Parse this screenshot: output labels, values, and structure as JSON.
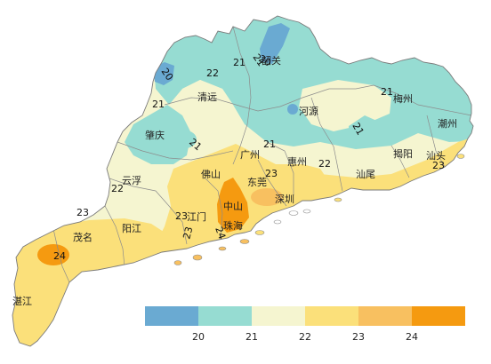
{
  "map": {
    "cities": [
      {
        "key": "shaoguan",
        "label": "韶关"
      },
      {
        "key": "qingyuan",
        "label": "清远"
      },
      {
        "key": "heyuan",
        "label": "河源"
      },
      {
        "key": "meizhou",
        "label": "梅州"
      },
      {
        "key": "chaozhou",
        "label": "潮州"
      },
      {
        "key": "zhaoqing",
        "label": "肇庆"
      },
      {
        "key": "guangzhou",
        "label": "广州"
      },
      {
        "key": "huizhou",
        "label": "惠州"
      },
      {
        "key": "jieyang",
        "label": "揭阳"
      },
      {
        "key": "shantou",
        "label": "汕头"
      },
      {
        "key": "foshan",
        "label": "佛山"
      },
      {
        "key": "dongguan",
        "label": "东莞"
      },
      {
        "key": "shanwei",
        "label": "汕尾"
      },
      {
        "key": "yunfu",
        "label": "云浮"
      },
      {
        "key": "shenzhen",
        "label": "深圳"
      },
      {
        "key": "zhongshan",
        "label": "中山"
      },
      {
        "key": "jiangmen",
        "label": "江门"
      },
      {
        "key": "zhuhai",
        "label": "珠海"
      },
      {
        "key": "maoming",
        "label": "茂名"
      },
      {
        "key": "yangjiang",
        "label": "阳江"
      },
      {
        "key": "zhanjiang",
        "label": "湛江"
      }
    ],
    "isolines": [
      "20",
      "21",
      "22",
      "23",
      "24"
    ],
    "contour_labels": [
      {
        "key": "c20_nw",
        "text": "20"
      },
      {
        "key": "c20_sg",
        "text": "20"
      },
      {
        "key": "c21_sg",
        "text": "21"
      },
      {
        "key": "c21_n",
        "text": "21"
      },
      {
        "key": "c22_n",
        "text": "22"
      },
      {
        "key": "c21_w",
        "text": "21"
      },
      {
        "key": "c21_zq",
        "text": "21"
      },
      {
        "key": "c21_gz",
        "text": "21"
      },
      {
        "key": "c21_hy",
        "text": "21"
      },
      {
        "key": "c21_mz",
        "text": "21"
      },
      {
        "key": "c22_hz",
        "text": "22"
      },
      {
        "key": "c22_yf",
        "text": "22"
      },
      {
        "key": "c23_w",
        "text": "23"
      },
      {
        "key": "c23_dg",
        "text": "23"
      },
      {
        "key": "c23_jm",
        "text": "23"
      },
      {
        "key": "c23_zh",
        "text": "23"
      },
      {
        "key": "c23_st",
        "text": "23"
      },
      {
        "key": "c24_mm",
        "text": "24"
      },
      {
        "key": "c24_zh",
        "text": "24"
      }
    ]
  },
  "legend": {
    "tick_labels": [
      "20",
      "21",
      "22",
      "23",
      "24"
    ],
    "colors": [
      "#6aaad2",
      "#96dcd2",
      "#f5f5d0",
      "#fbe07a",
      "#f8c060",
      "#f59a10"
    ]
  }
}
